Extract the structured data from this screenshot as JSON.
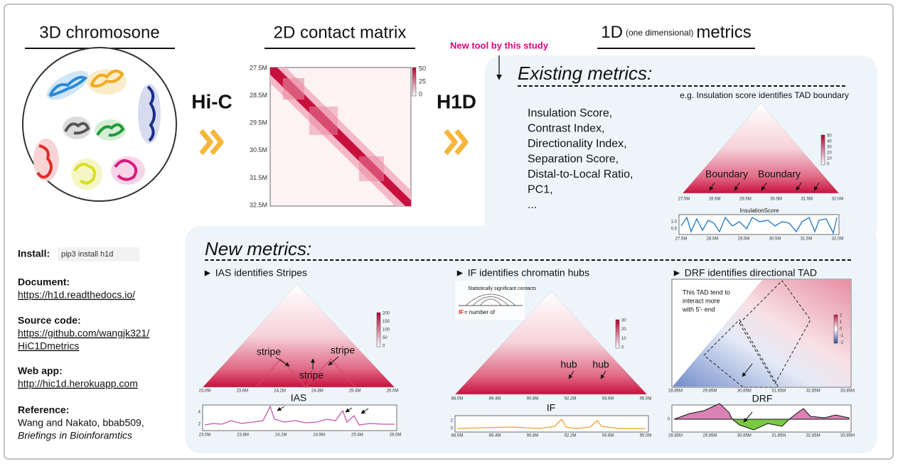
{
  "headers": {
    "chromosome": "3D chromosone",
    "matrix": "2D contact matrix",
    "metrics_main": "1D",
    "metrics_paren": "(one dimensional)",
    "metrics_end": "metrics"
  },
  "flow": {
    "hic": "Hi-C",
    "h1d": "H1D",
    "new_tool": "New tool by this study"
  },
  "matrix": {
    "yticks": [
      "27.5M",
      "28.5M",
      "29.5M",
      "30.5M",
      "31.5M",
      "32.5M"
    ],
    "colorbar": [
      "50",
      "25",
      "0"
    ]
  },
  "existing": {
    "title": "Existing metrics:",
    "list": [
      "Insulation Score,",
      "Contrast Index,",
      "Directionality Index,",
      "Separation Score,",
      "Distal-to-Local Ratio,",
      "PC1,",
      "..."
    ],
    "example_title": "e.g. Insulation score identifies TAD boundary",
    "boundary_labels": [
      "Boundary",
      "Boundary"
    ],
    "colorbar": [
      "50",
      "40",
      "30",
      "20",
      "10",
      "0"
    ],
    "xticks": [
      "27.5M",
      "28.5M",
      "29.5M",
      "30.5M",
      "31.5M",
      "32.0M"
    ],
    "track_title": "InsulationScore",
    "track_yticks": [
      "1.0",
      "0.5"
    ],
    "track_xticks": [
      "27.5M",
      "28.5M",
      "29.5M",
      "30.5M",
      "31.5M",
      "32.0M"
    ]
  },
  "info": [
    {
      "label": "Install:",
      "lines": [
        "pip3 install h1d"
      ]
    },
    {
      "label": "Document:",
      "lines": [
        "https://h1d.readthedocs.io/"
      ]
    },
    {
      "label": "Source code:",
      "lines": [
        "https://github.com/wangjk321/",
        "HiC1Dmetrics"
      ]
    },
    {
      "label": "Web app:",
      "lines": [
        "http://hic1d.herokuapp.com"
      ]
    },
    {
      "label": "Reference:",
      "lines": [
        "Wang and Nakato, bbab509,",
        "Briefings in Bioinforamtics"
      ]
    }
  ],
  "new": {
    "title": "New metrics:",
    "panels": [
      {
        "title": "► IAS identifies Stripes",
        "annotations": [
          "stripe",
          "stripe",
          "stripe"
        ],
        "colorbar": [
          "200",
          "150",
          "100",
          "50",
          "0"
        ],
        "xticks": [
          "23.0M",
          "23.6M",
          "24.2M",
          "24.8M",
          "25.4M",
          "26.0M"
        ],
        "track_label": "IAS",
        "track_yticks": [
          "4",
          "2"
        ],
        "track_xticks": [
          "23.0M",
          "23.6M",
          "24.2M",
          "24.8M",
          "25.4M",
          "26.0M"
        ]
      },
      {
        "title": "► IF identifies chromatin hubs",
        "annotations": [
          "hub",
          "hub"
        ],
        "inset": [
          "Statistically significant contacts",
          "IF",
          "= number of"
        ],
        "colorbar": [
          "30",
          "20",
          "10",
          "0"
        ],
        "xticks": [
          "88.0M",
          "89.4M",
          "90.8M",
          "92.2M",
          "93.6M",
          "95.0M"
        ],
        "track_label": "IF",
        "track_yticks": [
          "2",
          "0"
        ],
        "track_xticks": [
          "88.0M",
          "89.4M",
          "90.8M",
          "92.2M",
          "93.6M",
          "95.0M"
        ]
      },
      {
        "title": "► DRF identifies directional TAD",
        "annotations": [
          "This TAD tend to",
          "interact more",
          "with 5'- end"
        ],
        "colorbar": [
          "2",
          "1",
          "0",
          "-1",
          "-2"
        ],
        "xticks": [
          "28.85M",
          "29.85M",
          "30.85M",
          "31.85M",
          "32.85M",
          "33.85M"
        ],
        "track_label": "DRF",
        "track_yticks": [
          "0"
        ],
        "track_xticks": [
          "28.85M",
          "29.85M",
          "30.85M",
          "31.85M",
          "32.85M",
          "33.85M"
        ]
      }
    ]
  }
}
